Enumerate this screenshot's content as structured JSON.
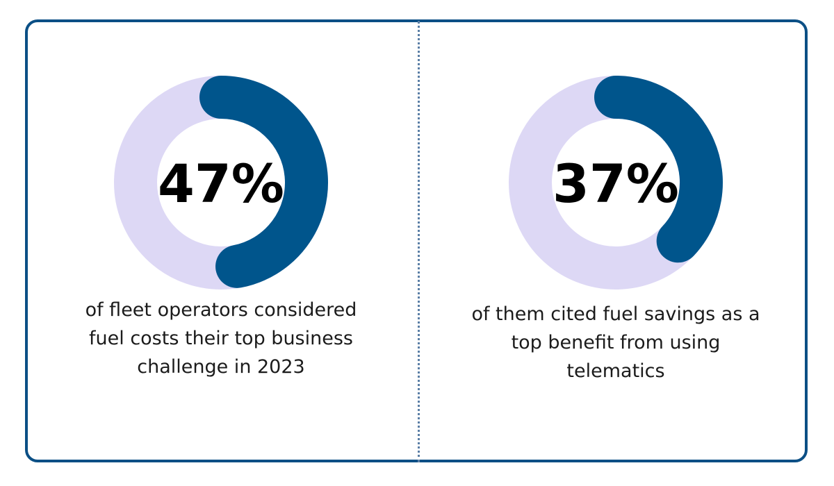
{
  "colors": {
    "border": "#0b4f85",
    "divider": "#5b7fa6",
    "track": "#ddd8f5",
    "arc": "#00558c",
    "value_text": "#000000",
    "caption_text": "#1b1b1b"
  },
  "chart_data": [
    {
      "type": "pie",
      "variant": "donut",
      "value": 47,
      "max": 100,
      "center_label": "47%",
      "caption_lines": [
        "of fleet operators considered",
        "fuel costs their top business",
        "challenge in 2023"
      ]
    },
    {
      "type": "pie",
      "variant": "donut",
      "value": 37,
      "max": 100,
      "center_label": "37%",
      "caption_lines": [
        "of them cited fuel savings as a",
        "top benefit from using",
        "telematics"
      ]
    }
  ]
}
